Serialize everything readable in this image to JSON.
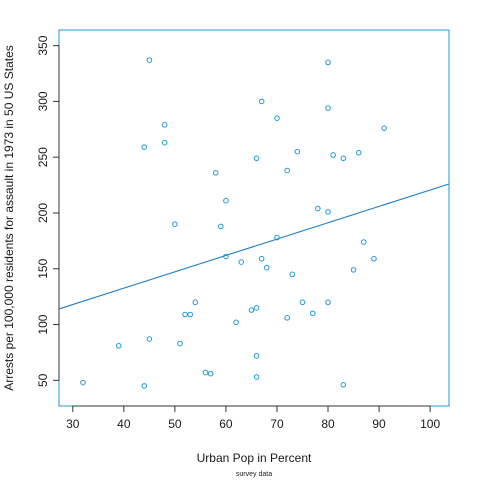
{
  "chart_data": {
    "type": "scatter",
    "title": "",
    "xlabel": "Urban Pop in Percent",
    "ylabel": "Arrests per 100,000 residents for assault in 1973 in 50 US States",
    "caption": "survey data",
    "xlim": [
      27.3,
      103.7
    ],
    "ylim": [
      27.0,
      364.0
    ],
    "x_ticks": [
      30,
      40,
      50,
      60,
      70,
      80,
      90,
      100
    ],
    "y_ticks": [
      50,
      100,
      150,
      200,
      250,
      300,
      350
    ],
    "grid": false,
    "legend": "none",
    "colors": {
      "points": "#1f9bcf",
      "line": "#1f7fc4",
      "frame": "#1f9bcf",
      "axis": "#333333"
    },
    "points": [
      {
        "x": 32,
        "y": 48
      },
      {
        "x": 39,
        "y": 81
      },
      {
        "x": 44,
        "y": 45
      },
      {
        "x": 44,
        "y": 259
      },
      {
        "x": 45,
        "y": 87
      },
      {
        "x": 45,
        "y": 337
      },
      {
        "x": 48,
        "y": 263
      },
      {
        "x": 48,
        "y": 279
      },
      {
        "x": 50,
        "y": 190
      },
      {
        "x": 51,
        "y": 83
      },
      {
        "x": 52,
        "y": 109
      },
      {
        "x": 53,
        "y": 109
      },
      {
        "x": 54,
        "y": 120
      },
      {
        "x": 56,
        "y": 57
      },
      {
        "x": 57,
        "y": 56
      },
      {
        "x": 58,
        "y": 236
      },
      {
        "x": 59,
        "y": 188
      },
      {
        "x": 60,
        "y": 211
      },
      {
        "x": 60,
        "y": 161
      },
      {
        "x": 62,
        "y": 102
      },
      {
        "x": 63,
        "y": 156
      },
      {
        "x": 65,
        "y": 113
      },
      {
        "x": 66,
        "y": 115
      },
      {
        "x": 66,
        "y": 249
      },
      {
        "x": 66,
        "y": 72
      },
      {
        "x": 66,
        "y": 53
      },
      {
        "x": 67,
        "y": 159
      },
      {
        "x": 67,
        "y": 300
      },
      {
        "x": 68,
        "y": 151
      },
      {
        "x": 70,
        "y": 178
      },
      {
        "x": 70,
        "y": 285
      },
      {
        "x": 72,
        "y": 106
      },
      {
        "x": 72,
        "y": 238
      },
      {
        "x": 73,
        "y": 145
      },
      {
        "x": 74,
        "y": 255
      },
      {
        "x": 75,
        "y": 120
      },
      {
        "x": 77,
        "y": 110
      },
      {
        "x": 78,
        "y": 204
      },
      {
        "x": 80,
        "y": 335
      },
      {
        "x": 80,
        "y": 294
      },
      {
        "x": 80,
        "y": 120
      },
      {
        "x": 80,
        "y": 201
      },
      {
        "x": 81,
        "y": 252
      },
      {
        "x": 83,
        "y": 249
      },
      {
        "x": 83,
        "y": 46
      },
      {
        "x": 85,
        "y": 149
      },
      {
        "x": 86,
        "y": 254
      },
      {
        "x": 87,
        "y": 174
      },
      {
        "x": 89,
        "y": 159
      },
      {
        "x": 91,
        "y": 276
      }
    ],
    "regression": {
      "x": [
        27.3,
        103.7
      ],
      "y": [
        114.0,
        226.0
      ]
    }
  }
}
